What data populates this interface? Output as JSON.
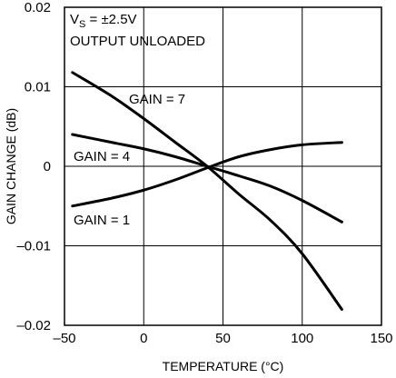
{
  "chart_data": {
    "type": "line",
    "xlabel": "TEMPERATURE (°C)",
    "ylabel": "GAIN CHANGE (dB)",
    "xlim": [
      -50,
      150
    ],
    "ylim": [
      -0.02,
      0.02
    ],
    "xticks": [
      "–50",
      "0",
      "50",
      "100",
      "150"
    ],
    "xtick_values": [
      -50,
      0,
      50,
      100,
      150
    ],
    "yticks": [
      "0.02",
      "0.01",
      "0",
      "–0.01",
      "–0.02"
    ],
    "ytick_values": [
      0.02,
      0.01,
      0,
      -0.01,
      -0.02
    ],
    "grid": true,
    "annotations": {
      "condition_prefix": "V",
      "condition_sub": "S",
      "condition_suffix": " = ±2.5V",
      "load": "OUTPUT UNLOADED"
    },
    "series": [
      {
        "name": "GAIN = 7",
        "x": [
          -45,
          -20,
          0,
          20,
          40,
          60,
          80,
          100,
          125
        ],
        "y": [
          0.0118,
          0.0088,
          0.006,
          0.003,
          0.0,
          -0.0035,
          -0.0068,
          -0.011,
          -0.018
        ]
      },
      {
        "name": "GAIN = 4",
        "x": [
          -45,
          -20,
          0,
          20,
          40,
          60,
          80,
          100,
          125
        ],
        "y": [
          0.004,
          0.003,
          0.0022,
          0.0012,
          0.0,
          -0.0012,
          -0.0025,
          -0.0043,
          -0.007
        ]
      },
      {
        "name": "GAIN = 1",
        "x": [
          -45,
          -20,
          0,
          20,
          40,
          60,
          80,
          100,
          125
        ],
        "y": [
          -0.005,
          -0.004,
          -0.003,
          -0.0017,
          -0.0002,
          0.0012,
          0.0021,
          0.0027,
          0.003
        ]
      }
    ]
  }
}
